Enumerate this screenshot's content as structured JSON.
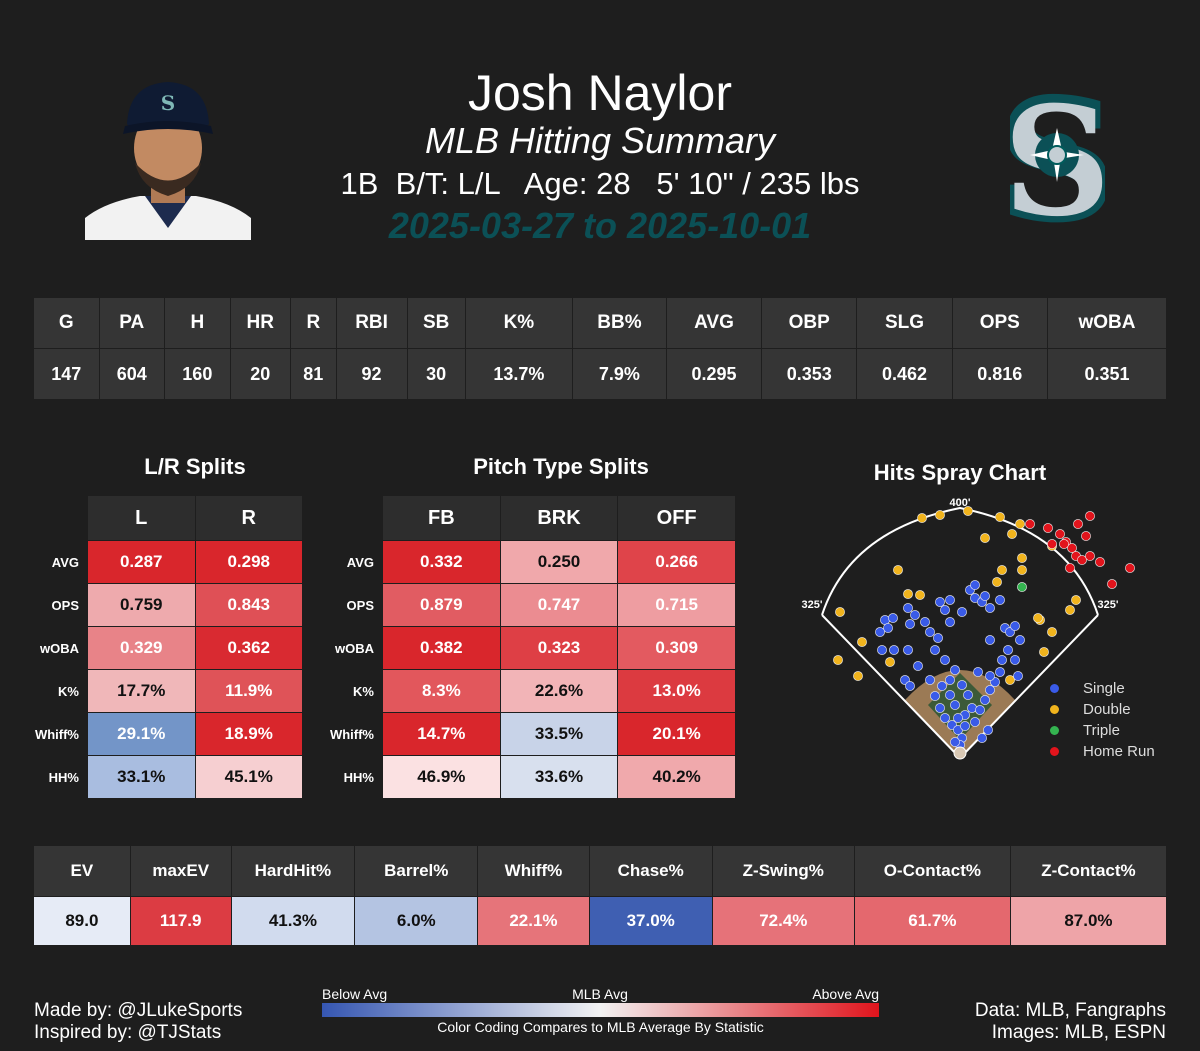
{
  "player": {
    "name": "Josh Naylor",
    "subtitle": "MLB Hitting Summary",
    "info": "1B  B/T: L/L   Age: 28   5' 10\" / 235 lbs",
    "dates": "2025-03-27 to 2025-10-01"
  },
  "season_stats": {
    "headers": [
      "G",
      "PA",
      "H",
      "HR",
      "R",
      "RBI",
      "SB",
      "K%",
      "BB%",
      "AVG",
      "OBP",
      "SLG",
      "OPS",
      "wOBA"
    ],
    "values": [
      "147",
      "604",
      "160",
      "20",
      "81",
      "92",
      "30",
      "13.7%",
      "7.9%",
      "0.295",
      "0.353",
      "0.462",
      "0.816",
      "0.351"
    ]
  },
  "lr_splits": {
    "title": "L/R Splits",
    "columns": [
      "L",
      "R"
    ],
    "rows": [
      {
        "label": "AVG",
        "cells": [
          {
            "v": "0.287",
            "c": "#d9262c"
          },
          {
            "v": "0.298",
            "c": "#d9262c"
          }
        ]
      },
      {
        "label": "OPS",
        "cells": [
          {
            "v": "0.759",
            "c": "#eeaaad",
            "dark": true
          },
          {
            "v": "0.843",
            "c": "#df5056"
          }
        ]
      },
      {
        "label": "wOBA",
        "cells": [
          {
            "v": "0.329",
            "c": "#e88388"
          },
          {
            "v": "0.362",
            "c": "#d92a31"
          }
        ]
      },
      {
        "label": "K%",
        "cells": [
          {
            "v": "17.7%",
            "c": "#f0b7b9",
            "dark": true
          },
          {
            "v": "11.9%",
            "c": "#df5358"
          }
        ]
      },
      {
        "label": "Whiff%",
        "cells": [
          {
            "v": "29.1%",
            "c": "#7395c8"
          },
          {
            "v": "18.9%",
            "c": "#d9262c"
          }
        ]
      },
      {
        "label": "HH%",
        "cells": [
          {
            "v": "33.1%",
            "c": "#a9bde0",
            "dark": true
          },
          {
            "v": "45.1%",
            "c": "#f6cfd1",
            "dark": true
          }
        ]
      }
    ]
  },
  "pitch_splits": {
    "title": "Pitch Type Splits",
    "columns": [
      "FB",
      "BRK",
      "OFF"
    ],
    "rows": [
      {
        "label": "AVG",
        "cells": [
          {
            "v": "0.332",
            "c": "#d9262c"
          },
          {
            "v": "0.250",
            "c": "#f0a8ab",
            "dark": true
          },
          {
            "v": "0.266",
            "c": "#df444a"
          }
        ]
      },
      {
        "label": "OPS",
        "cells": [
          {
            "v": "0.879",
            "c": "#e15c62"
          },
          {
            "v": "0.747",
            "c": "#eb8c91"
          },
          {
            "v": "0.715",
            "c": "#ee9da1"
          }
        ]
      },
      {
        "label": "wOBA",
        "cells": [
          {
            "v": "0.382",
            "c": "#d9262c"
          },
          {
            "v": "0.323",
            "c": "#de3f45"
          },
          {
            "v": "0.309",
            "c": "#e35a60"
          }
        ]
      },
      {
        "label": "K%",
        "cells": [
          {
            "v": "8.3%",
            "c": "#e2575c"
          },
          {
            "v": "22.6%",
            "c": "#f2b4b7",
            "dark": true
          },
          {
            "v": "13.0%",
            "c": "#dc3a40"
          }
        ]
      },
      {
        "label": "Whiff%",
        "cells": [
          {
            "v": "14.7%",
            "c": "#d9262c"
          },
          {
            "v": "33.5%",
            "c": "#c8d3e8",
            "dark": true
          },
          {
            "v": "20.1%",
            "c": "#d9262c"
          }
        ]
      },
      {
        "label": "HH%",
        "cells": [
          {
            "v": "46.9%",
            "c": "#fbe1e2",
            "dark": true
          },
          {
            "v": "33.6%",
            "c": "#d8e0ee",
            "dark": true
          },
          {
            "v": "40.2%",
            "c": "#f0a9ac",
            "dark": true
          }
        ]
      }
    ]
  },
  "spray": {
    "title": "Hits Spray Chart",
    "dist_center": "400'",
    "dist_left": "325'",
    "dist_right": "325'",
    "legend": [
      {
        "label": "Single",
        "color": "#3a5be8"
      },
      {
        "label": "Double",
        "color": "#f1b41d"
      },
      {
        "label": "Triple",
        "color": "#34b450"
      },
      {
        "label": "Home Run",
        "color": "#e2141c"
      }
    ]
  },
  "plate_discipline": {
    "headers": [
      "EV",
      "maxEV",
      "HardHit%",
      "Barrel%",
      "Whiff%",
      "Chase%",
      "Z-Swing%",
      "O-Contact%",
      "Z-Contact%"
    ],
    "values": [
      {
        "v": "89.0",
        "c": "#e6ebf6",
        "dark": true
      },
      {
        "v": "117.9",
        "c": "#dc3c43"
      },
      {
        "v": "41.3%",
        "c": "#d1dbee",
        "dark": true
      },
      {
        "v": "6.0%",
        "c": "#b4c4e2",
        "dark": true
      },
      {
        "v": "22.1%",
        "c": "#e6747a"
      },
      {
        "v": "37.0%",
        "c": "#3f5fb2"
      },
      {
        "v": "72.4%",
        "c": "#e67279"
      },
      {
        "v": "61.7%",
        "c": "#e4686e"
      },
      {
        "v": "87.0%",
        "c": "#eea4a8",
        "dark": true
      }
    ]
  },
  "legend_bar": {
    "below": "Below Avg",
    "mid": "MLB Avg",
    "above": "Above Avg",
    "caption": "Color Coding Compares to MLB Average By Statistic",
    "colors": [
      "#3556b2",
      "#f2f2f2",
      "#e0141c"
    ]
  },
  "credits": {
    "made_by": "Made by: @JLukeSports",
    "inspired_by": "Inspired by: @TJStats",
    "data": "Data: MLB, Fangraphs",
    "images": "Images: MLB, ESPN"
  },
  "logo": {
    "letter": "S"
  }
}
